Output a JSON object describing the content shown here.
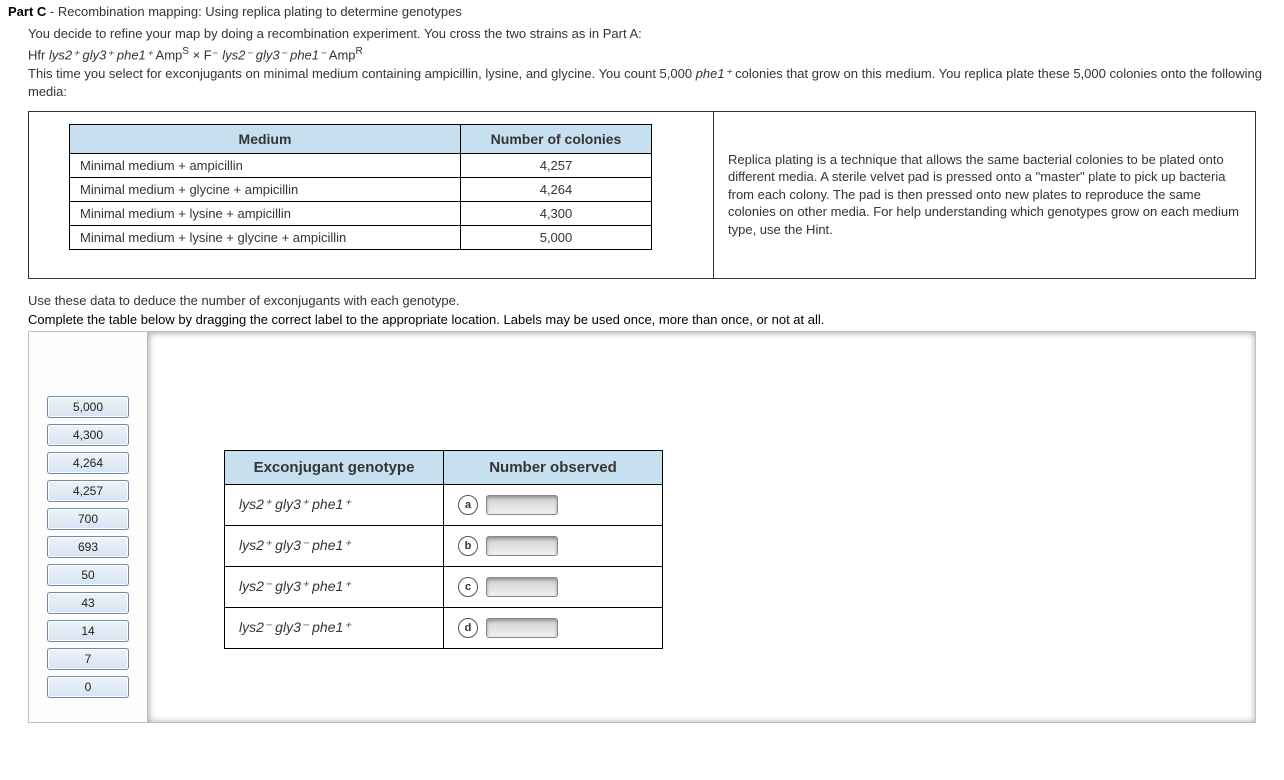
{
  "header": {
    "part_label": "Part C",
    "part_title": "Recombination mapping: Using replica plating to determine genotypes"
  },
  "intro": {
    "line1": "You decide to refine your map by doing a recombination experiment. You cross the two strains as in Part A:",
    "cross_prefix": "Hfr ",
    "cross_text": "lys2⁺ gly3⁺ phe1⁺",
    "amp_s_pre": " Amp",
    "amp_s_sup": "S",
    "by": " × F⁻ ",
    "cross_text2": "lys2⁻ gly3⁻ phe1⁻",
    "amp_r_pre": " Amp",
    "amp_r_sup": "R",
    "line3a": "This time you select for exconjugants on minimal medium containing ampicillin, lysine, and glycine. You count 5,000 ",
    "line3i": "phe1⁺",
    "line3b": " colonies that grow on this medium. You replica plate these 5,000 colonies onto the following media:"
  },
  "data_table": {
    "headers": {
      "medium": "Medium",
      "count": "Number of colonies"
    },
    "rows": [
      {
        "medium": "Minimal medium + ampicillin",
        "count": "4,257"
      },
      {
        "medium": "Minimal medium + glycine + ampicillin",
        "count": "4,264"
      },
      {
        "medium": "Minimal medium + lysine + ampicillin",
        "count": "4,300"
      },
      {
        "medium": "Minimal medium + lysine + glycine + ampicillin",
        "count": "5,000"
      }
    ]
  },
  "side_text": "Replica plating is a technique that allows the same bacterial colonies to be plated onto different media. A sterile velvet pad is pressed onto a \"master\" plate to pick up bacteria from each colony. The pad is then pressed onto new plates to reproduce the same colonies on other media. For help understanding which genotypes grow on each medium type, use the Hint.",
  "instructions": {
    "a": "Use these data to deduce the number of exconjugants with each genotype.",
    "b": "Complete the table below by dragging the correct label to the appropriate location. Labels may be used once, more than once, or not at all."
  },
  "labels": [
    "5,000",
    "4,300",
    "4,264",
    "4,257",
    "700",
    "693",
    "50",
    "43",
    "14",
    "7",
    "0"
  ],
  "geno_table": {
    "headers": {
      "geno": "Exconjugant genotype",
      "num": "Number observed"
    },
    "rows": [
      {
        "geno": "lys2⁺ gly3⁺ phe1⁺",
        "slot": "a"
      },
      {
        "geno": "lys2⁺ gly3⁻ phe1⁺",
        "slot": "b"
      },
      {
        "geno": "lys2⁻ gly3⁺ phe1⁺",
        "slot": "c"
      },
      {
        "geno": "lys2⁻ gly3⁻ phe1⁺",
        "slot": "d"
      }
    ]
  }
}
